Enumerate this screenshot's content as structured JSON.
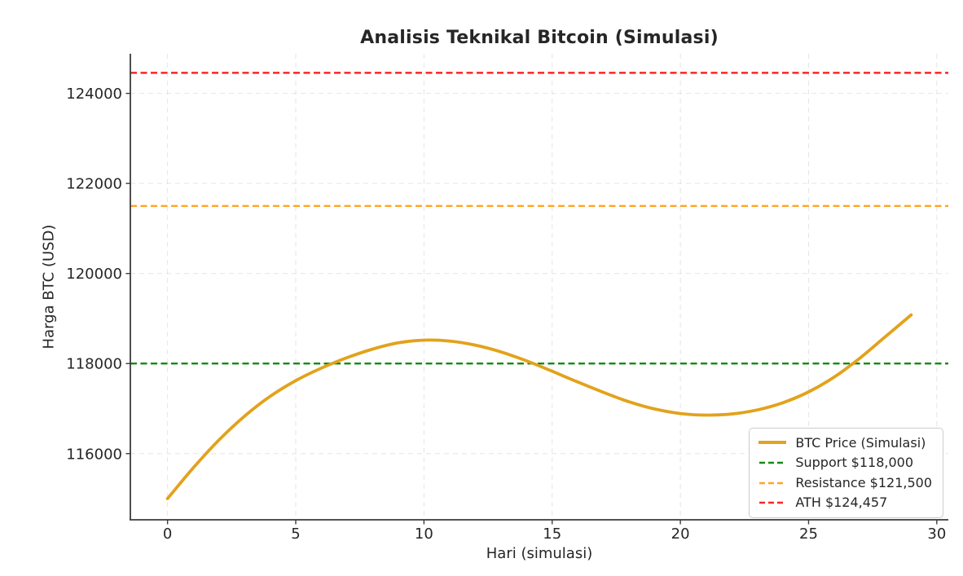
{
  "chart_data": {
    "type": "line",
    "title": "Analisis Teknikal Bitcoin (Simulasi)",
    "xlabel": "Hari (simulasi)",
    "ylabel": "Harga BTC (USD)",
    "x": [
      0,
      1,
      2,
      3,
      4,
      5,
      6,
      7,
      8,
      9,
      10,
      11,
      12,
      13,
      14,
      15,
      16,
      17,
      18,
      19,
      20,
      21,
      22,
      23,
      24,
      25,
      26,
      27,
      28,
      29
    ],
    "series": [
      {
        "name": "BTC Price (Simulasi)",
        "color": "#e2a21b",
        "line_style": "solid",
        "line_width": 3.8,
        "values": [
          115000,
          115680,
          116300,
          116830,
          117270,
          117620,
          117900,
          118130,
          118320,
          118460,
          118520,
          118500,
          118410,
          118260,
          118060,
          117830,
          117590,
          117360,
          117150,
          116990,
          116890,
          116855,
          116880,
          116970,
          117130,
          117370,
          117700,
          118120,
          118600,
          119080
        ]
      }
    ],
    "reference_lines": [
      {
        "name": "Support $118,000",
        "value": 118000,
        "color": "#108a10",
        "line_style": "dashed"
      },
      {
        "name": "Resistance $121,500",
        "value": 121500,
        "color": "#ffa524",
        "line_style": "dashed"
      },
      {
        "name": "ATH $124,457",
        "value": 124457,
        "color": "#fb2525",
        "line_style": "dashed"
      }
    ],
    "xticks": [
      0,
      5,
      10,
      15,
      20,
      25,
      30
    ],
    "yticks": [
      116000,
      118000,
      120000,
      122000,
      124000
    ],
    "xlim": [
      -1.45,
      30.45
    ],
    "ylim": [
      114530,
      124880
    ],
    "grid": {
      "visible": true,
      "style": "dashed",
      "color": "#d4d4d4"
    },
    "legend": {
      "position": "lower right",
      "entries": [
        {
          "label": "BTC Price (Simulasi)",
          "color": "#e2a21b",
          "style": "solid"
        },
        {
          "label": "Support $118,000",
          "color": "#108a10",
          "style": "dashed"
        },
        {
          "label": "Resistance $121,500",
          "color": "#ffa524",
          "style": "dashed"
        },
        {
          "label": "ATH $124,457",
          "color": "#fb2525",
          "style": "dashed"
        }
      ]
    }
  },
  "style": {
    "background": "#ffffff",
    "text_color": "#262626",
    "spine_color": "#3a3a3a",
    "grid_color": "#d4d4d4",
    "legend_border": "#cccccc"
  }
}
